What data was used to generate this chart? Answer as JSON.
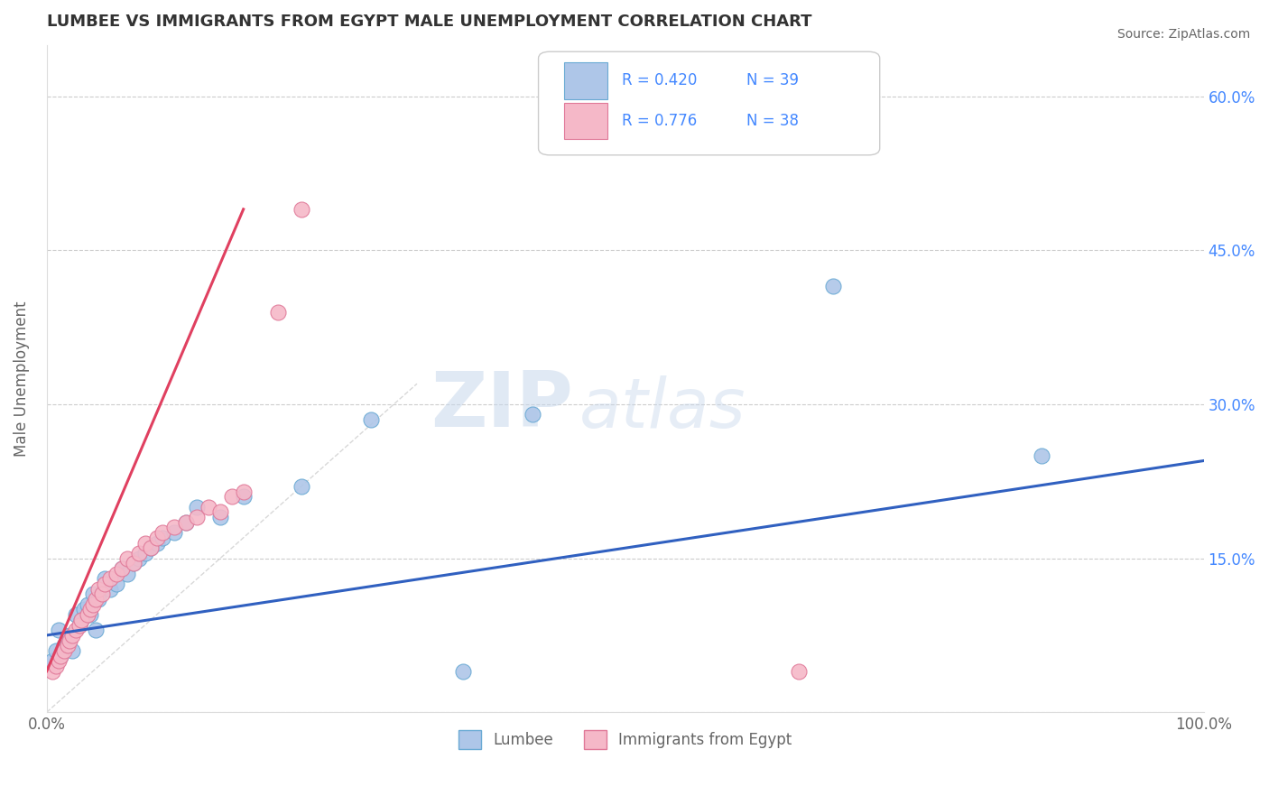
{
  "title": "LUMBEE VS IMMIGRANTS FROM EGYPT MALE UNEMPLOYMENT CORRELATION CHART",
  "source_text": "Source: ZipAtlas.com",
  "ylabel": "Male Unemployment",
  "watermark_zip": "ZIP",
  "watermark_atlas": "atlas",
  "xlim": [
    0.0,
    1.0
  ],
  "ylim": [
    0.0,
    0.65
  ],
  "xtick_labels": [
    "0.0%",
    "100.0%"
  ],
  "ytick_positions": [
    0.0,
    0.15,
    0.3,
    0.45,
    0.6
  ],
  "ytick_labels": [
    "",
    "15.0%",
    "30.0%",
    "45.0%",
    "60.0%"
  ],
  "legend_r1": "R = 0.420",
  "legend_n1": "N = 39",
  "legend_r2": "R = 0.776",
  "legend_n2": "N = 38",
  "lumbee_color": "#aec6e8",
  "egypt_color": "#f5b8c8",
  "lumbee_edge": "#6aaad4",
  "egypt_edge": "#e07898",
  "trend_blue": "#3060c0",
  "trend_pink": "#e04060",
  "ref_line_color": "#c8c8c8",
  "title_color": "#333333",
  "label_color": "#666666",
  "tick_color": "#4488ff",
  "legend_text_color": "#4488ff",
  "lumbee_x": [
    0.005,
    0.008,
    0.01,
    0.012,
    0.015,
    0.018,
    0.02,
    0.022,
    0.025,
    0.028,
    0.03,
    0.032,
    0.035,
    0.038,
    0.04,
    0.042,
    0.045,
    0.05,
    0.055,
    0.06,
    0.065,
    0.07,
    0.075,
    0.08,
    0.085,
    0.09,
    0.095,
    0.1,
    0.11,
    0.12,
    0.13,
    0.15,
    0.17,
    0.22,
    0.28,
    0.36,
    0.42,
    0.68,
    0.86
  ],
  "lumbee_y": [
    0.05,
    0.06,
    0.08,
    0.055,
    0.065,
    0.07,
    0.075,
    0.06,
    0.095,
    0.085,
    0.09,
    0.1,
    0.105,
    0.095,
    0.115,
    0.08,
    0.11,
    0.13,
    0.12,
    0.125,
    0.14,
    0.135,
    0.145,
    0.15,
    0.155,
    0.16,
    0.165,
    0.17,
    0.175,
    0.185,
    0.2,
    0.19,
    0.21,
    0.22,
    0.285,
    0.04,
    0.29,
    0.415,
    0.25
  ],
  "egypt_x": [
    0.005,
    0.008,
    0.01,
    0.012,
    0.015,
    0.018,
    0.02,
    0.022,
    0.025,
    0.028,
    0.03,
    0.035,
    0.038,
    0.04,
    0.042,
    0.045,
    0.048,
    0.05,
    0.055,
    0.06,
    0.065,
    0.07,
    0.075,
    0.08,
    0.085,
    0.09,
    0.095,
    0.1,
    0.11,
    0.12,
    0.13,
    0.14,
    0.15,
    0.16,
    0.17,
    0.2,
    0.22,
    0.65
  ],
  "egypt_y": [
    0.04,
    0.045,
    0.05,
    0.055,
    0.06,
    0.065,
    0.07,
    0.075,
    0.08,
    0.085,
    0.09,
    0.095,
    0.1,
    0.105,
    0.11,
    0.12,
    0.115,
    0.125,
    0.13,
    0.135,
    0.14,
    0.15,
    0.145,
    0.155,
    0.165,
    0.16,
    0.17,
    0.175,
    0.18,
    0.185,
    0.19,
    0.2,
    0.195,
    0.21,
    0.215,
    0.39,
    0.49,
    0.04
  ],
  "blue_trend_x": [
    0.0,
    1.0
  ],
  "blue_trend_y": [
    0.075,
    0.245
  ],
  "pink_trend_x": [
    0.0,
    0.17
  ],
  "pink_trend_y": [
    0.04,
    0.49
  ]
}
